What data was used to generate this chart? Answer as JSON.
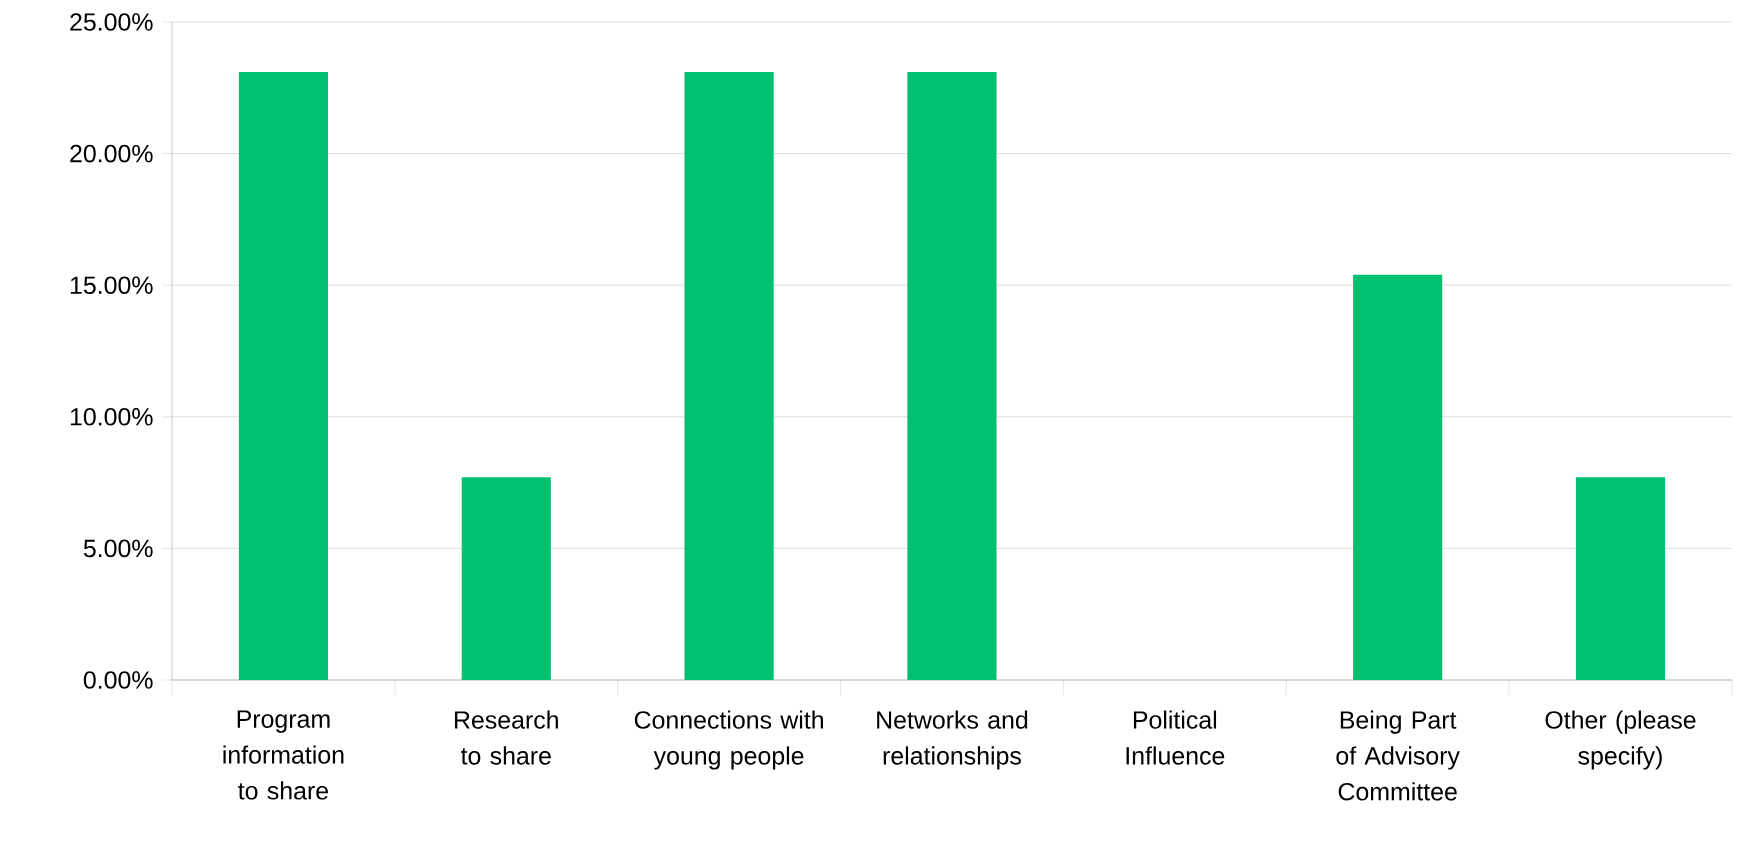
{
  "chart_data": {
    "type": "bar",
    "categories": [
      "Program information to share",
      "Research to share",
      "Connections with young people",
      "Networks and relationships",
      "Political Influence",
      "Being Part of Advisory Committee",
      "Other (please specify)"
    ],
    "values": [
      23.1,
      7.7,
      23.1,
      23.1,
      0,
      15.4,
      7.7
    ],
    "color": "#00bf6f",
    "ylim": [
      0,
      25
    ],
    "yticks": [
      {
        "value": 0,
        "label": "0.00%"
      },
      {
        "value": 5,
        "label": "5.00%"
      },
      {
        "value": 10,
        "label": "10.00%"
      },
      {
        "value": 15,
        "label": "15.00%"
      },
      {
        "value": 20,
        "label": "20.00%"
      },
      {
        "value": 25,
        "label": "25.00%"
      }
    ],
    "grid": "y"
  }
}
